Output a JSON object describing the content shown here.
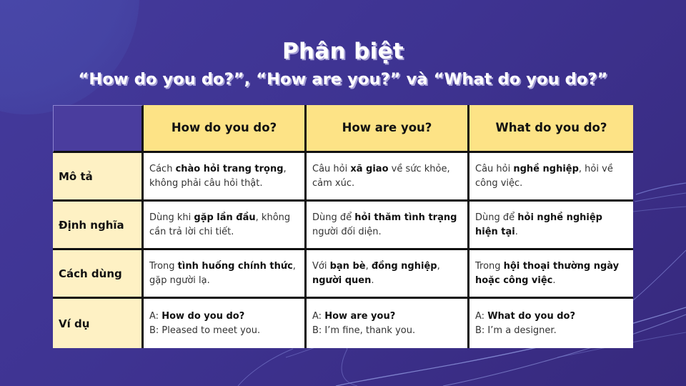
{
  "title": {
    "main": "Phân biệt",
    "sub": "“How do you do?”, “How are you?” và “What do you do?”"
  },
  "colors": {
    "background": "#3e3391",
    "header_fill": "#fde386",
    "label_fill": "#fef1c4",
    "corner_fill": "#4a3d9e",
    "cell_fill": "#ffffff",
    "border": "#111111"
  },
  "table": {
    "columns": [
      "How do you do?",
      "How are you?",
      "What do you do?"
    ],
    "rows": [
      {
        "label": "Mô tả",
        "cells": [
          {
            "parts": [
              [
                "Cách ",
                false
              ],
              [
                "chào hỏi trang trọng",
                true
              ],
              [
                ", không phải câu hỏi thật.",
                false
              ]
            ]
          },
          {
            "parts": [
              [
                "Câu hỏi ",
                false
              ],
              [
                "xã giao",
                true
              ],
              [
                " về sức khỏe, cảm xúc.",
                false
              ]
            ]
          },
          {
            "parts": [
              [
                "Câu hỏi ",
                false
              ],
              [
                "nghề nghiệp",
                true
              ],
              [
                ", hỏi về công việc.",
                false
              ]
            ]
          }
        ]
      },
      {
        "label": "Định nghĩa",
        "cells": [
          {
            "parts": [
              [
                "Dùng khi ",
                false
              ],
              [
                "gặp lần đầu",
                true
              ],
              [
                ", không cần trả lời chi tiết.",
                false
              ]
            ]
          },
          {
            "parts": [
              [
                "Dùng để ",
                false
              ],
              [
                "hỏi thăm tình trạng",
                true
              ],
              [
                " người đối diện.",
                false
              ]
            ]
          },
          {
            "parts": [
              [
                "Dùng để ",
                false
              ],
              [
                "hỏi nghề nghiệp hiện tại",
                true
              ],
              [
                ".",
                false
              ]
            ]
          }
        ]
      },
      {
        "label": "Cách dùng",
        "cells": [
          {
            "parts": [
              [
                "Trong ",
                false
              ],
              [
                "tình huống chính thức",
                true
              ],
              [
                ", gặp người lạ.",
                false
              ]
            ]
          },
          {
            "parts": [
              [
                "Với ",
                false
              ],
              [
                "bạn bè",
                true
              ],
              [
                ", ",
                false
              ],
              [
                "đồng nghiệp",
                true
              ],
              [
                ", ",
                false
              ],
              [
                "người quen",
                true
              ],
              [
                ".",
                false
              ]
            ]
          },
          {
            "parts": [
              [
                "Trong ",
                false
              ],
              [
                "hội thoại thường ngày hoặc công việc",
                true
              ],
              [
                ".",
                false
              ]
            ]
          }
        ]
      },
      {
        "label": "Ví dụ",
        "cells": [
          {
            "a_prefix": "A: ",
            "a_text": "How do you do?",
            "b_text": "B: Pleased to meet you."
          },
          {
            "a_prefix": "A: ",
            "a_text": "How are you?",
            "b_text": "B: I’m fine, thank you."
          },
          {
            "a_prefix": "A: ",
            "a_text": "What do you do?",
            "b_text": "B: I’m a designer."
          }
        ]
      }
    ]
  }
}
